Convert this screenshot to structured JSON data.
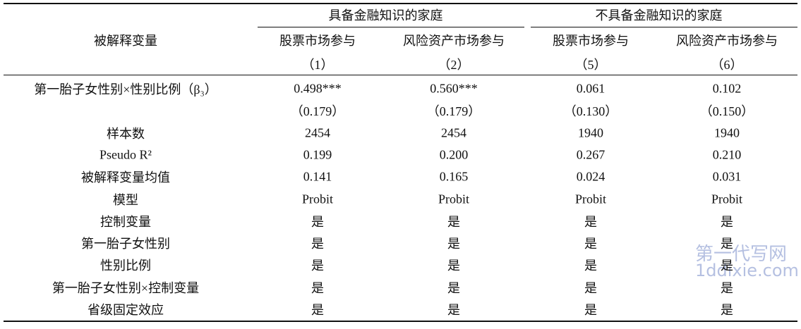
{
  "table": {
    "header": {
      "dependent_label": "被解释变量",
      "groups": [
        "具备金融知识的家庭",
        "不具备金融知识的家庭"
      ],
      "columns": [
        "股票市场参与",
        "风险资产市场参与",
        "股票市场参与",
        "风险资产市场参与"
      ],
      "numbers": [
        "（1）",
        "（2）",
        "（5）",
        "（6）"
      ]
    },
    "rows": [
      [
        "第一胎子女性别×性别比例（β₃）",
        "0.498***",
        "0.560***",
        "0.061",
        "0.102"
      ],
      [
        null,
        "（0.179）",
        "（0.179）",
        "（0.130）",
        "（0.150）"
      ],
      [
        "样本数",
        "2454",
        "2454",
        "1940",
        "1940"
      ],
      [
        "Pseudo R²",
        "0.199",
        "0.200",
        "0.267",
        "0.210"
      ],
      [
        "被解释变量均值",
        "0.141",
        "0.165",
        "0.024",
        "0.031"
      ],
      [
        "模型",
        "Probit",
        "Probit",
        "Probit",
        "Probit"
      ],
      [
        "控制变量",
        "是",
        "是",
        "是",
        "是"
      ],
      [
        "第一胎子女性别",
        "是",
        "是",
        "是",
        "是"
      ],
      [
        "性别比例",
        "是",
        "是",
        "是",
        "是"
      ],
      [
        "第一胎子女性别×控制变量",
        "是",
        "是",
        "是",
        "是"
      ],
      [
        "省级固定效应",
        "是",
        "是",
        "是",
        "是"
      ]
    ]
  },
  "watermark": {
    "brand": "第一代写网",
    "url": "1ddixie.com"
  }
}
